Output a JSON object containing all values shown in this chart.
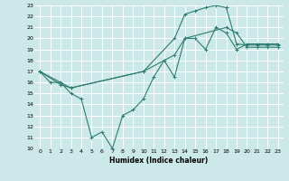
{
  "background_color": "#cde8e8",
  "grid_color": "#ffffff",
  "line_color": "#2d7d6e",
  "xlabel": "Humidex (Indice chaleur)",
  "xlim": [
    -0.5,
    23.5
  ],
  "ylim": [
    10,
    23
  ],
  "yticks": [
    10,
    11,
    12,
    13,
    14,
    15,
    16,
    17,
    18,
    19,
    20,
    21,
    22,
    23
  ],
  "xticks": [
    0,
    1,
    2,
    3,
    4,
    5,
    6,
    7,
    8,
    9,
    10,
    11,
    12,
    13,
    14,
    15,
    16,
    17,
    18,
    19,
    20,
    21,
    22,
    23
  ],
  "line1_x": [
    0,
    1,
    2,
    3,
    4,
    5,
    6,
    7,
    8,
    9,
    10,
    11,
    12,
    13,
    14,
    15,
    16,
    17,
    18,
    19,
    20,
    21,
    22,
    23
  ],
  "line1_y": [
    17,
    16,
    16,
    15,
    14.5,
    11,
    11.5,
    10,
    13,
    13.5,
    14.5,
    16.5,
    18,
    16.5,
    20,
    20,
    19,
    21,
    20.5,
    19,
    19.5,
    19.5,
    19.5,
    19.5
  ],
  "line2_x": [
    0,
    2,
    3,
    10,
    13,
    14,
    15,
    16,
    17,
    18,
    19,
    20,
    21,
    22,
    23
  ],
  "line2_y": [
    17,
    15.8,
    15.5,
    17,
    20,
    22.2,
    22.5,
    22.8,
    23.0,
    22.8,
    19.5,
    19.4,
    19.4,
    19.4,
    19.4
  ],
  "line3_x": [
    0,
    3,
    10,
    13,
    14,
    18,
    19,
    20,
    21,
    22,
    23
  ],
  "line3_y": [
    17,
    15.5,
    17,
    18.5,
    20.0,
    21.0,
    20.5,
    19.2,
    19.2,
    19.2,
    19.2
  ]
}
